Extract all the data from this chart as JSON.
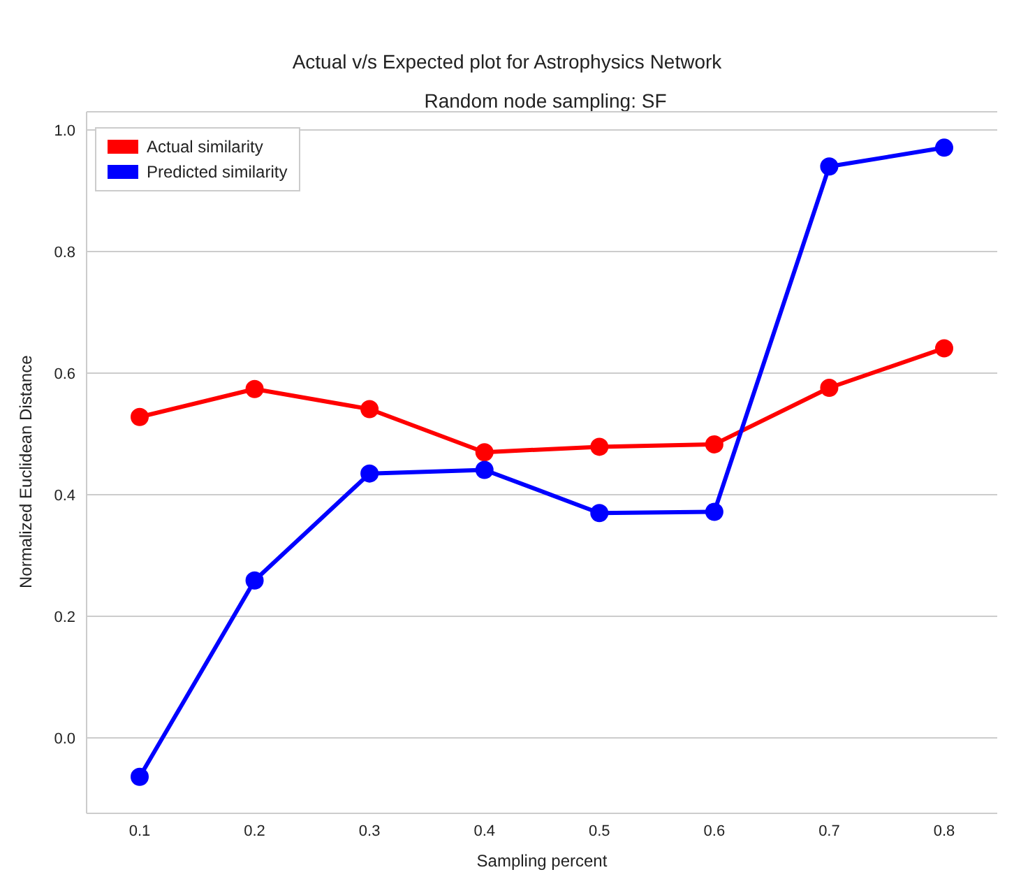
{
  "chart_data": {
    "type": "line",
    "title": "Actual v/s Expected plot for Astrophysics Network",
    "subtitle": "Random node sampling: SF",
    "xlabel": "Sampling percent",
    "ylabel": "Normalized Euclidean Distance",
    "categories": [
      "0.1",
      "0.2",
      "0.3",
      "0.4",
      "0.5",
      "0.6",
      "0.7",
      "0.8"
    ],
    "series": [
      {
        "name": "Actual similarity",
        "color": "#ff0000",
        "values": [
          0.528,
          0.574,
          0.541,
          0.47,
          0.479,
          0.483,
          0.576,
          0.641
        ]
      },
      {
        "name": "Predicted similarity",
        "color": "#0000ff",
        "values": [
          -0.064,
          0.259,
          0.435,
          0.441,
          0.37,
          0.372,
          0.94,
          0.971
        ]
      }
    ],
    "ylim": [
      -0.124,
      1.03
    ],
    "yticks": [
      {
        "value": 0,
        "label": "0.0"
      },
      0.2,
      0.4,
      0.6,
      0.8,
      {
        "value": 1,
        "label": "1.0"
      }
    ],
    "grid": "y",
    "legend": "top left",
    "marker": "circle",
    "line_style": "solid"
  }
}
